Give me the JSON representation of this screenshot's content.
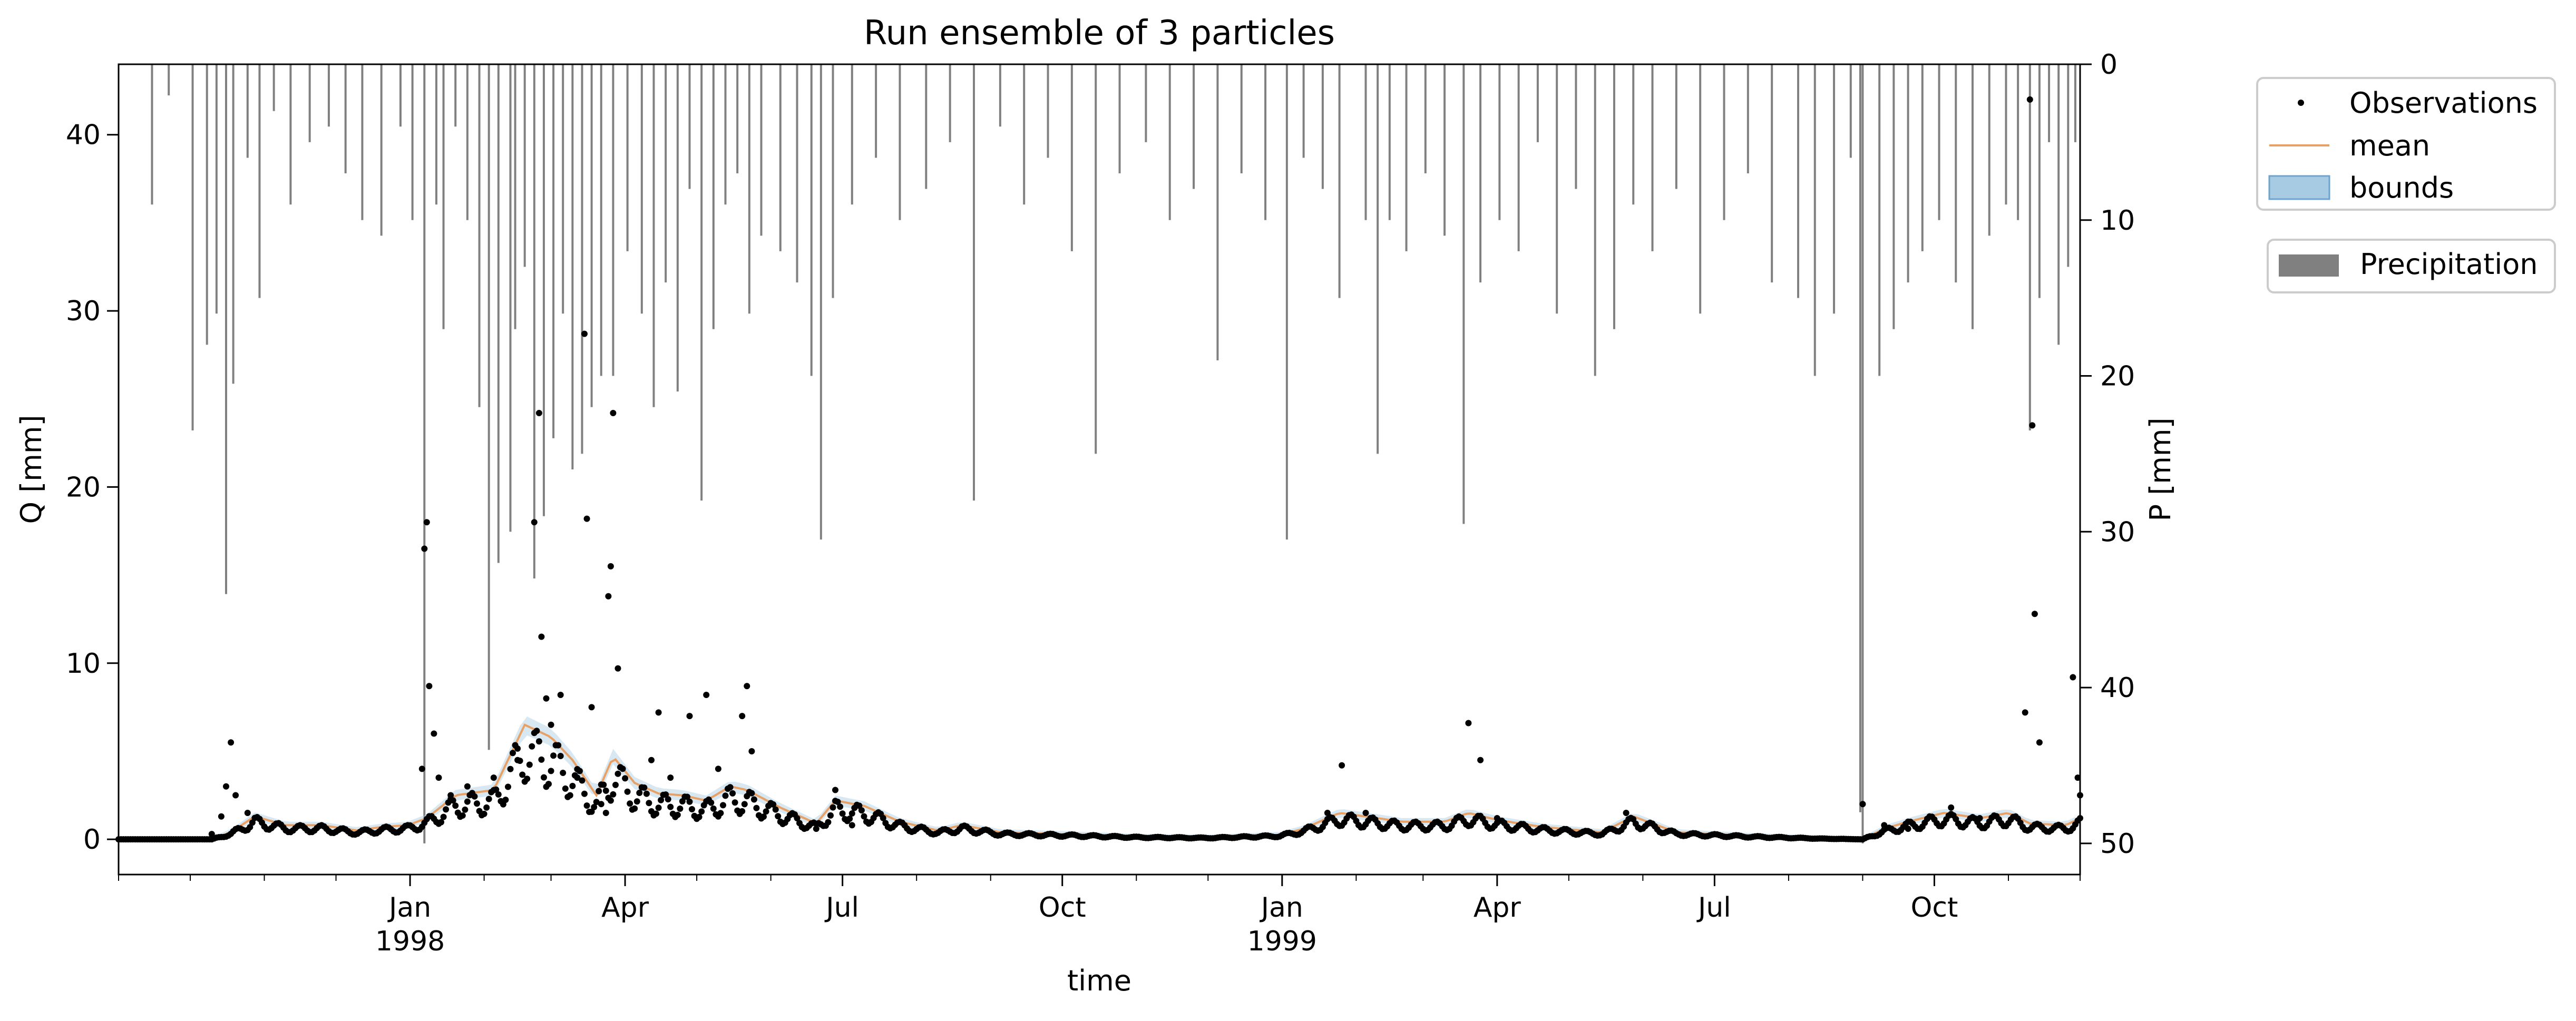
{
  "chart_data": {
    "type": "line",
    "title": "Run ensemble of 3 particles",
    "xlabel": "time",
    "ylabel": "Q [mm]",
    "y2label": "P [mm]",
    "x_range": [
      "1997-09-01",
      "1999-12-01"
    ],
    "ylim": [
      -2,
      44
    ],
    "y2lim": [
      52,
      0
    ],
    "y_ticks": [
      0,
      10,
      20,
      30,
      40
    ],
    "y2_ticks": [
      0,
      10,
      20,
      30,
      40,
      50
    ],
    "x_ticks": [
      {
        "date": "1998-01-01",
        "label": "Jan",
        "sublabel": "1998"
      },
      {
        "date": "1998-04-01",
        "label": "Apr",
        "sublabel": ""
      },
      {
        "date": "1998-07-01",
        "label": "Jul",
        "sublabel": ""
      },
      {
        "date": "1998-10-01",
        "label": "Oct",
        "sublabel": ""
      },
      {
        "date": "1999-01-01",
        "label": "Jan",
        "sublabel": "1999"
      },
      {
        "date": "1999-04-01",
        "label": "Apr",
        "sublabel": ""
      },
      {
        "date": "1999-07-01",
        "label": "Jul",
        "sublabel": ""
      },
      {
        "date": "1999-10-01",
        "label": "Oct",
        "sublabel": ""
      }
    ],
    "legend": {
      "placement": "outside-right",
      "entries": [
        {
          "label": "Observations",
          "kind": "marker"
        },
        {
          "label": "mean",
          "kind": "line"
        },
        {
          "label": "bounds",
          "kind": "patch"
        }
      ],
      "precip_label": "Precipitation"
    },
    "colors": {
      "observations": "#000000",
      "mean": "#e8a064",
      "bounds": "#a6cbe3",
      "precipitation": "#808080"
    },
    "mean_series": [
      [
        "1997-09-01",
        0.0
      ],
      [
        "1997-10-10",
        0.0
      ],
      [
        "1997-10-18",
        0.4
      ],
      [
        "1997-10-28",
        1.3
      ],
      [
        "1997-11-10",
        0.8
      ],
      [
        "1997-11-25",
        0.8
      ],
      [
        "1997-12-10",
        0.5
      ],
      [
        "1997-12-20",
        0.7
      ],
      [
        "1997-12-31",
        0.8
      ],
      [
        "1998-01-08",
        1.2
      ],
      [
        "1998-01-20",
        2.5
      ],
      [
        "1998-02-05",
        2.8
      ],
      [
        "1998-02-18",
        6.5
      ],
      [
        "1998-03-01",
        5.8
      ],
      [
        "1998-03-10",
        4.5
      ],
      [
        "1998-03-20",
        2.5
      ],
      [
        "1998-03-27",
        4.7
      ],
      [
        "1998-04-05",
        3.2
      ],
      [
        "1998-04-15",
        2.6
      ],
      [
        "1998-04-25",
        2.5
      ],
      [
        "1998-05-05",
        2.2
      ],
      [
        "1998-05-15",
        3.0
      ],
      [
        "1998-05-22",
        2.8
      ],
      [
        "1998-06-05",
        1.8
      ],
      [
        "1998-06-20",
        0.9
      ],
      [
        "1998-06-28",
        2.2
      ],
      [
        "1998-07-10",
        1.9
      ],
      [
        "1998-07-25",
        1.0
      ],
      [
        "1998-08-10",
        0.5
      ],
      [
        "1998-08-20",
        0.8
      ],
      [
        "1998-09-05",
        0.4
      ],
      [
        "1998-09-30",
        0.3
      ],
      [
        "1998-11-01",
        0.15
      ],
      [
        "1998-12-01",
        0.1
      ],
      [
        "1998-12-31",
        0.25
      ],
      [
        "1999-01-10",
        0.6
      ],
      [
        "1999-01-25",
        1.5
      ],
      [
        "1999-02-10",
        1.2
      ],
      [
        "1999-02-20",
        1.0
      ],
      [
        "1999-03-10",
        1.0
      ],
      [
        "1999-03-20",
        1.5
      ],
      [
        "1999-04-01",
        1.1
      ],
      [
        "1999-04-20",
        0.7
      ],
      [
        "1999-05-15",
        0.4
      ],
      [
        "1999-05-28",
        1.3
      ],
      [
        "1999-06-15",
        0.4
      ],
      [
        "1999-07-15",
        0.2
      ],
      [
        "1999-08-15",
        0.05
      ],
      [
        "1999-09-01",
        0.0
      ],
      [
        "1999-09-10",
        0.6
      ],
      [
        "1999-09-20",
        1.0
      ],
      [
        "1999-10-05",
        1.5
      ],
      [
        "1999-10-20",
        1.2
      ],
      [
        "1999-11-01",
        1.5
      ],
      [
        "1999-11-10",
        0.9
      ],
      [
        "1999-11-25",
        0.8
      ],
      [
        "1999-12-01",
        1.2
      ]
    ],
    "observations": [
      [
        "1997-10-10",
        0.3
      ],
      [
        "1997-10-14",
        1.3
      ],
      [
        "1997-10-16",
        3.0
      ],
      [
        "1997-10-18",
        5.5
      ],
      [
        "1997-10-20",
        2.5
      ],
      [
        "1997-10-25",
        1.5
      ],
      [
        "1998-01-06",
        4.0
      ],
      [
        "1998-01-07",
        16.5
      ],
      [
        "1998-01-08",
        18.0
      ],
      [
        "1998-01-09",
        8.7
      ],
      [
        "1998-01-11",
        6.0
      ],
      [
        "1998-01-13",
        3.5
      ],
      [
        "1998-01-18",
        2.5
      ],
      [
        "1998-01-25",
        3.0
      ],
      [
        "1998-02-05",
        3.5
      ],
      [
        "1998-02-15",
        4.5
      ],
      [
        "1998-02-22",
        18.0
      ],
      [
        "1998-02-24",
        24.2
      ],
      [
        "1998-02-25",
        11.5
      ],
      [
        "1998-02-27",
        8.0
      ],
      [
        "1998-03-01",
        6.5
      ],
      [
        "1998-03-05",
        8.2
      ],
      [
        "1998-03-12",
        3.5
      ],
      [
        "1998-03-15",
        28.7
      ],
      [
        "1998-03-16",
        18.2
      ],
      [
        "1998-03-18",
        7.5
      ],
      [
        "1998-03-22",
        2.0
      ],
      [
        "1998-03-24",
        1.5
      ],
      [
        "1998-03-25",
        13.8
      ],
      [
        "1998-03-26",
        15.5
      ],
      [
        "1998-03-27",
        24.2
      ],
      [
        "1998-03-29",
        9.7
      ],
      [
        "1998-04-12",
        4.5
      ],
      [
        "1998-04-15",
        7.2
      ],
      [
        "1998-04-20",
        3.5
      ],
      [
        "1998-04-28",
        7.0
      ],
      [
        "1998-05-05",
        8.2
      ],
      [
        "1998-05-10",
        4.0
      ],
      [
        "1998-05-20",
        7.0
      ],
      [
        "1998-05-22",
        8.7
      ],
      [
        "1998-05-24",
        5.0
      ],
      [
        "1998-06-01",
        2.0
      ],
      [
        "1998-06-20",
        0.6
      ],
      [
        "1998-06-28",
        2.8
      ],
      [
        "1998-07-05",
        0.8
      ],
      [
        "1999-01-20",
        1.5
      ],
      [
        "1999-01-26",
        4.2
      ],
      [
        "1999-02-05",
        1.5
      ],
      [
        "1999-03-20",
        6.6
      ],
      [
        "1999-03-25",
        4.5
      ],
      [
        "1999-04-01",
        1.2
      ],
      [
        "1999-05-25",
        1.5
      ],
      [
        "1999-09-01",
        2.0
      ],
      [
        "1999-09-10",
        0.8
      ],
      [
        "1999-09-20",
        0.6
      ],
      [
        "1999-10-08",
        1.8
      ],
      [
        "1999-10-20",
        1.2
      ],
      [
        "1999-11-08",
        7.2
      ],
      [
        "1999-11-10",
        42.0
      ],
      [
        "1999-11-11",
        23.5
      ],
      [
        "1999-11-12",
        12.8
      ],
      [
        "1999-11-14",
        5.5
      ],
      [
        "1999-11-25",
        0.5
      ],
      [
        "1999-11-28",
        9.2
      ],
      [
        "1999-11-30",
        3.5
      ],
      [
        "1999-12-01",
        2.5
      ]
    ],
    "precipitation": [
      [
        "1997-09-15",
        9.0
      ],
      [
        "1997-09-22",
        2.0
      ],
      [
        "1997-10-02",
        23.5
      ],
      [
        "1997-10-08",
        18.0
      ],
      [
        "1997-10-12",
        16.0
      ],
      [
        "1997-10-16",
        34.0
      ],
      [
        "1997-10-19",
        20.5
      ],
      [
        "1997-10-25",
        6.0
      ],
      [
        "1997-10-30",
        15.0
      ],
      [
        "1997-11-05",
        3.0
      ],
      [
        "1997-11-12",
        9.0
      ],
      [
        "1997-11-20",
        5.0
      ],
      [
        "1997-11-28",
        4.0
      ],
      [
        "1997-12-05",
        7.0
      ],
      [
        "1997-12-12",
        10.0
      ],
      [
        "1997-12-20",
        11.0
      ],
      [
        "1997-12-28",
        4.0
      ],
      [
        "1998-01-02",
        10.0
      ],
      [
        "1998-01-07",
        50.0
      ],
      [
        "1998-01-12",
        9.0
      ],
      [
        "1998-01-15",
        17.0
      ],
      [
        "1998-01-20",
        4.0
      ],
      [
        "1998-01-25",
        10.0
      ],
      [
        "1998-01-30",
        22.0
      ],
      [
        "1998-02-03",
        44.0
      ],
      [
        "1998-02-07",
        32.0
      ],
      [
        "1998-02-12",
        30.0
      ],
      [
        "1998-02-14",
        17.0
      ],
      [
        "1998-02-18",
        13.0
      ],
      [
        "1998-02-22",
        33.0
      ],
      [
        "1998-02-26",
        29.0
      ],
      [
        "1998-03-02",
        24.0
      ],
      [
        "1998-03-06",
        16.0
      ],
      [
        "1998-03-10",
        26.0
      ],
      [
        "1998-03-14",
        25.0
      ],
      [
        "1998-03-18",
        22.0
      ],
      [
        "1998-03-22",
        20.0
      ],
      [
        "1998-03-27",
        20.0
      ],
      [
        "1998-04-02",
        12.0
      ],
      [
        "1998-04-08",
        16.0
      ],
      [
        "1998-04-13",
        22.0
      ],
      [
        "1998-04-18",
        14.0
      ],
      [
        "1998-04-23",
        21.0
      ],
      [
        "1998-04-28",
        8.0
      ],
      [
        "1998-05-03",
        28.0
      ],
      [
        "1998-05-08",
        17.0
      ],
      [
        "1998-05-13",
        9.0
      ],
      [
        "1998-05-18",
        7.0
      ],
      [
        "1998-05-23",
        16.0
      ],
      [
        "1998-05-28",
        11.0
      ],
      [
        "1998-06-05",
        12.0
      ],
      [
        "1998-06-12",
        14.0
      ],
      [
        "1998-06-18",
        20.0
      ],
      [
        "1998-06-22",
        30.5
      ],
      [
        "1998-06-27",
        15.0
      ],
      [
        "1998-07-05",
        9.0
      ],
      [
        "1998-07-15",
        6.0
      ],
      [
        "1998-07-25",
        10.0
      ],
      [
        "1998-08-05",
        8.0
      ],
      [
        "1998-08-15",
        5.0
      ],
      [
        "1998-08-25",
        28.0
      ],
      [
        "1998-09-05",
        4.0
      ],
      [
        "1998-09-15",
        9.0
      ],
      [
        "1998-09-25",
        6.0
      ],
      [
        "1998-10-05",
        12.0
      ],
      [
        "1998-10-15",
        25.0
      ],
      [
        "1998-10-25",
        7.0
      ],
      [
        "1998-11-05",
        5.0
      ],
      [
        "1998-11-15",
        10.0
      ],
      [
        "1998-11-25",
        8.0
      ],
      [
        "1998-12-05",
        19.0
      ],
      [
        "1998-12-15",
        7.0
      ],
      [
        "1998-12-25",
        10.0
      ],
      [
        "1999-01-03",
        30.5
      ],
      [
        "1999-01-10",
        6.0
      ],
      [
        "1999-01-18",
        8.0
      ],
      [
        "1999-01-25",
        15.0
      ],
      [
        "1999-02-05",
        10.0
      ],
      [
        "1999-02-10",
        25.0
      ],
      [
        "1999-02-15",
        10.0
      ],
      [
        "1999-02-22",
        12.0
      ],
      [
        "1999-03-02",
        7.0
      ],
      [
        "1999-03-10",
        11.0
      ],
      [
        "1999-03-18",
        29.5
      ],
      [
        "1999-03-25",
        14.0
      ],
      [
        "1999-04-02",
        10.0
      ],
      [
        "1999-04-10",
        12.0
      ],
      [
        "1999-04-18",
        5.0
      ],
      [
        "1999-04-26",
        16.0
      ],
      [
        "1999-05-04",
        8.0
      ],
      [
        "1999-05-12",
        20.0
      ],
      [
        "1999-05-20",
        17.0
      ],
      [
        "1999-05-28",
        9.0
      ],
      [
        "1999-06-05",
        12.0
      ],
      [
        "1999-06-15",
        8.0
      ],
      [
        "1999-06-25",
        16.0
      ],
      [
        "1999-07-05",
        10.0
      ],
      [
        "1999-07-15",
        7.0
      ],
      [
        "1999-07-25",
        14.0
      ],
      [
        "1999-08-05",
        15.0
      ],
      [
        "1999-08-12",
        20.0
      ],
      [
        "1999-08-20",
        16.0
      ],
      [
        "1999-08-27",
        6.0
      ],
      [
        "1999-08-31",
        48.0
      ],
      [
        "1999-09-01",
        50.0
      ],
      [
        "1999-09-08",
        20.0
      ],
      [
        "1999-09-14",
        17.0
      ],
      [
        "1999-09-20",
        14.0
      ],
      [
        "1999-09-26",
        12.0
      ],
      [
        "1999-10-03",
        10.0
      ],
      [
        "1999-10-10",
        14.0
      ],
      [
        "1999-10-17",
        17.0
      ],
      [
        "1999-10-24",
        11.0
      ],
      [
        "1999-10-31",
        9.0
      ],
      [
        "1999-11-05",
        10.0
      ],
      [
        "1999-11-10",
        23.5
      ],
      [
        "1999-11-14",
        15.0
      ],
      [
        "1999-11-18",
        5.0
      ],
      [
        "1999-11-22",
        18.0
      ],
      [
        "1999-11-26",
        13.0
      ],
      [
        "1999-11-29",
        5.0
      ]
    ]
  }
}
